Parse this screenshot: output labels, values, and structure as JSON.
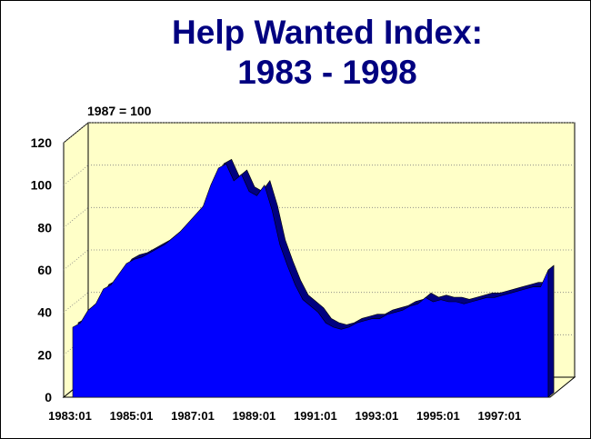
{
  "title_line1": "Help Wanted Index:",
  "title_line2": "1983 - 1998",
  "unit_note": "1987 = 100",
  "colors": {
    "title": "#000080",
    "area": "#0000ff",
    "side": "#000080",
    "plot_bg": "#ffffc8",
    "floor": "#ffffc8"
  },
  "chart_data": {
    "type": "area",
    "title": "Help Wanted Index: 1983 - 1998",
    "ylabel": "1987 = 100",
    "xlabel": "",
    "ylim": [
      0,
      120
    ],
    "y_ticks": [
      "0",
      "20",
      "40",
      "60",
      "80",
      "100",
      "120"
    ],
    "x_ticks": [
      "1983:01",
      "1985:01",
      "1987:01",
      "1989:01",
      "1991:01",
      "1993:01",
      "1995:01",
      "1997:01"
    ],
    "x_range": [
      1983.0,
      1998.5
    ],
    "grid": true,
    "series": [
      {
        "x": [
          1983.0,
          1983.25,
          1983.5,
          1983.75,
          1984.0,
          1984.25,
          1984.5,
          1984.75,
          1985.0,
          1985.25,
          1985.5,
          1985.75,
          1986.0,
          1986.25,
          1986.5,
          1986.75,
          1987.0,
          1987.25,
          1987.5,
          1987.75,
          1988.0,
          1988.25,
          1988.5,
          1988.75,
          1989.0,
          1989.25,
          1989.5,
          1989.75,
          1990.0,
          1990.25,
          1990.5,
          1990.75,
          1991.0,
          1991.25,
          1991.5,
          1991.75,
          1992.0,
          1992.25,
          1992.5,
          1992.75,
          1993.0,
          1993.25,
          1993.5,
          1993.75,
          1994.0,
          1994.25,
          1994.5,
          1994.75,
          1995.0,
          1995.25,
          1995.5,
          1995.75,
          1996.0,
          1996.25,
          1996.5,
          1996.75,
          1997.0,
          1997.25,
          1997.5,
          1997.75,
          1998.0,
          1998.25,
          1998.5
        ],
        "values": [
          33,
          35,
          41,
          44,
          51,
          53,
          58,
          63,
          65,
          66,
          68,
          70,
          72,
          75,
          78,
          82,
          86,
          90,
          100,
          108,
          110,
          102,
          105,
          97,
          95,
          100,
          88,
          72,
          62,
          53,
          46,
          43,
          40,
          35,
          33,
          32,
          33,
          35,
          36,
          37,
          37,
          39,
          40,
          41,
          43,
          44,
          47,
          45,
          46,
          45,
          45,
          44,
          45,
          46,
          47,
          47,
          48,
          49,
          50,
          51,
          52,
          52,
          60
        ]
      }
    ]
  }
}
